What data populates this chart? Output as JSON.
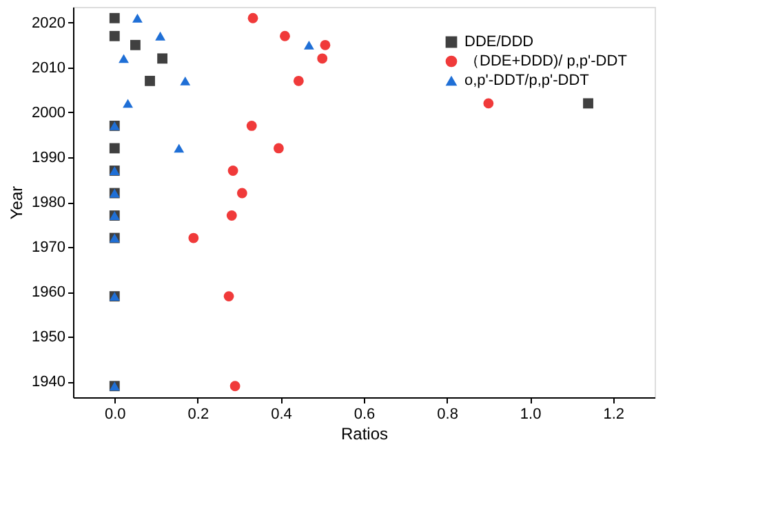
{
  "chart_data": {
    "type": "scatter",
    "xlabel": "Ratios",
    "ylabel": "Year",
    "x": [
      2021,
      2017,
      2015,
      2012,
      2007,
      2002,
      1997,
      1992,
      1987,
      1982,
      1977,
      1972,
      1959,
      1939
    ],
    "series": [
      {
        "name": "DDE/DDD",
        "color": "#404040",
        "marker": "square",
        "values": [
          0,
          0,
          0.05,
          0.115,
          0.085,
          1.14,
          0,
          0,
          0,
          0,
          0,
          0,
          0,
          0
        ]
      },
      {
        "name": "（DDE+DDD)/ p,p'-DDT",
        "color": "#f03a3a",
        "marker": "circle",
        "values": [
          0.333,
          0.41,
          0.507,
          0.5,
          0.443,
          0.9,
          0.33,
          0.395,
          0.285,
          0.307,
          0.282,
          0.19,
          0.275,
          0.29
        ]
      },
      {
        "name": "o,p'-DDT/p,p'-DDT",
        "color": "#1f6fd6",
        "marker": "triangle",
        "values": [
          0.055,
          0.11,
          0.468,
          0.022,
          0.17,
          0.032,
          0,
          0.155,
          0,
          0,
          0,
          0,
          0,
          0
        ]
      }
    ],
    "orientation": "horizontal",
    "xlim": [
      -0.1,
      1.3
    ],
    "xticks": [
      {
        "value": 0,
        "label": "0.0"
      },
      0.2,
      0.4,
      0.6,
      0.8,
      {
        "value": 1,
        "label": "1.0"
      },
      1.2
    ],
    "ylim": [
      1936.5,
      2023.5
    ],
    "yticks": [
      1940,
      1950,
      1960,
      1970,
      1980,
      1990,
      2000,
      2010,
      2020
    ],
    "grid": false,
    "legend": "top right"
  }
}
